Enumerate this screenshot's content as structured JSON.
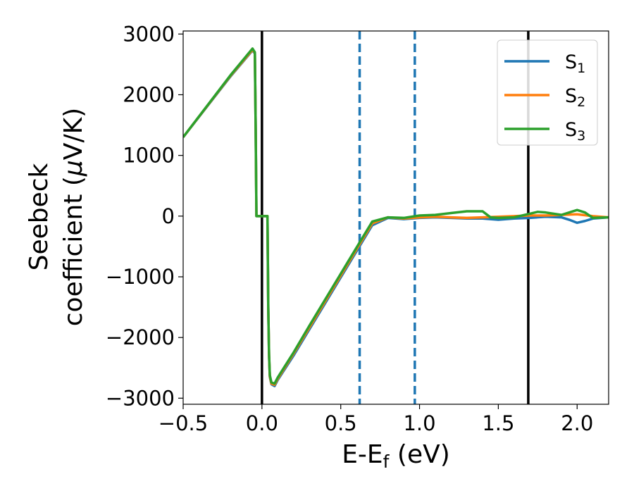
{
  "chart_data": {
    "type": "line",
    "title": "",
    "xlabel": "E-E",
    "xlabel_sub": "f",
    "xlabel_unit": " (eV)",
    "ylabel_line1": "Seebeck",
    "ylabel_line2": "coefficient  (",
    "ylabel_mu": "μ",
    "ylabel_unit": "V/K)",
    "xlim": [
      -0.5,
      2.2
    ],
    "ylim": [
      -3100,
      3050
    ],
    "xticks": [
      -0.5,
      0.0,
      0.5,
      1.0,
      1.5,
      2.0
    ],
    "xtick_labels": [
      "−0.5",
      "0.0",
      "0.5",
      "1.0",
      "1.5",
      "2.0"
    ],
    "yticks": [
      -3000,
      -2000,
      -1000,
      0,
      1000,
      2000,
      3000
    ],
    "ytick_labels": [
      "−3000",
      "−2000",
      "−1000",
      "0",
      "1000",
      "2000",
      "3000"
    ],
    "grid": false,
    "legend_position": "top-right",
    "vlines_solid": [
      0.0,
      1.69
    ],
    "vlines_dashed": [
      0.62,
      0.97
    ],
    "series": [
      {
        "name": "S",
        "name_sub": "1",
        "color": "#1f77b4",
        "x": [
          -0.5,
          -0.2,
          -0.06,
          -0.045,
          -0.04,
          -0.035,
          0.035,
          0.04,
          0.045,
          0.05,
          0.06,
          0.08,
          0.1,
          0.2,
          0.3,
          0.4,
          0.5,
          0.6,
          0.7,
          0.8,
          0.9,
          1.0,
          1.1,
          1.2,
          1.3,
          1.4,
          1.5,
          1.6,
          1.7,
          1.8,
          1.9,
          1.95,
          2.0,
          2.05,
          2.1,
          2.2
        ],
        "y": [
          1300,
          2300,
          2730,
          2680,
          1500,
          0,
          0,
          -1500,
          -2300,
          -2650,
          -2770,
          -2800,
          -2700,
          -2300,
          -1870,
          -1440,
          -1010,
          -580,
          -150,
          -30,
          -50,
          -30,
          -20,
          -30,
          -40,
          -40,
          -60,
          -40,
          -30,
          -10,
          -20,
          -60,
          -110,
          -80,
          -40,
          -20
        ]
      },
      {
        "name": "S",
        "name_sub": "2",
        "color": "#ff7f0e",
        "x": [
          -0.5,
          -0.2,
          -0.06,
          -0.045,
          -0.04,
          -0.035,
          0.035,
          0.04,
          0.045,
          0.05,
          0.06,
          0.08,
          0.1,
          0.2,
          0.3,
          0.4,
          0.5,
          0.6,
          0.7,
          0.8,
          0.9,
          1.0,
          1.1,
          1.2,
          1.3,
          1.4,
          1.5,
          1.6,
          1.7,
          1.8,
          1.9,
          2.0,
          2.1,
          2.2
        ],
        "y": [
          1300,
          2310,
          2740,
          2690,
          1500,
          0,
          0,
          -1500,
          -2290,
          -2640,
          -2760,
          -2780,
          -2680,
          -2270,
          -1840,
          -1410,
          -980,
          -550,
          -120,
          -20,
          -40,
          -20,
          -10,
          -20,
          -30,
          -20,
          -10,
          0,
          10,
          10,
          20,
          30,
          0,
          -20
        ]
      },
      {
        "name": "S",
        "name_sub": "3",
        "color": "#2ca02c",
        "x": [
          -0.5,
          -0.2,
          -0.06,
          -0.045,
          -0.04,
          -0.035,
          0.035,
          0.04,
          0.045,
          0.05,
          0.06,
          0.08,
          0.1,
          0.2,
          0.3,
          0.4,
          0.5,
          0.6,
          0.7,
          0.8,
          0.9,
          1.0,
          1.1,
          1.2,
          1.3,
          1.4,
          1.45,
          1.5,
          1.6,
          1.7,
          1.75,
          1.8,
          1.9,
          2.0,
          2.05,
          2.1,
          2.2
        ],
        "y": [
          1300,
          2320,
          2760,
          2700,
          1500,
          0,
          0,
          -1500,
          -2270,
          -2620,
          -2740,
          -2760,
          -2660,
          -2250,
          -1810,
          -1380,
          -950,
          -520,
          -90,
          -20,
          -30,
          10,
          20,
          50,
          80,
          80,
          -20,
          -30,
          -20,
          40,
          70,
          60,
          20,
          100,
          60,
          -30,
          -20
        ]
      }
    ]
  }
}
